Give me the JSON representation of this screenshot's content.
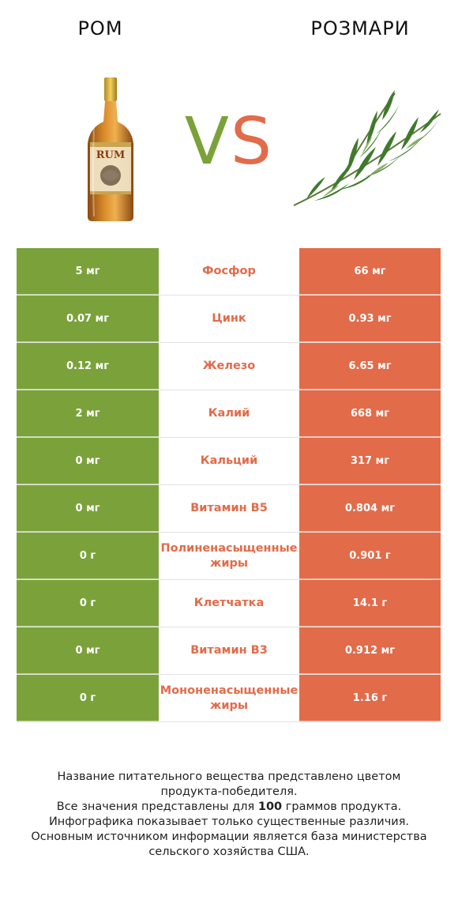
{
  "left_product": {
    "name": "РОМ",
    "image": "rum-bottle-image"
  },
  "right_product": {
    "name": "РОЗМАРИ",
    "image": "rosemary-sprig-image"
  },
  "vs": {
    "v": "V",
    "s": "S"
  },
  "colors": {
    "left": "#7ba23a",
    "right": "#e26b4a"
  },
  "rows": [
    {
      "left": "5 мг",
      "nutrient": "Фосфор",
      "right": "66 мг",
      "winner": "right"
    },
    {
      "left": "0.07 мг",
      "nutrient": "Цинк",
      "right": "0.93 мг",
      "winner": "right"
    },
    {
      "left": "0.12 мг",
      "nutrient": "Железо",
      "right": "6.65 мг",
      "winner": "right"
    },
    {
      "left": "2 мг",
      "nutrient": "Калий",
      "right": "668 мг",
      "winner": "right"
    },
    {
      "left": "0 мг",
      "nutrient": "Кальций",
      "right": "317 мг",
      "winner": "right"
    },
    {
      "left": "0 мг",
      "nutrient": "Витамин B5",
      "right": "0.804 мг",
      "winner": "right"
    },
    {
      "left": "0 г",
      "nutrient": "Полиненасыщенные жиры",
      "right": "0.901 г",
      "winner": "right"
    },
    {
      "left": "0 г",
      "nutrient": "Клетчатка",
      "right": "14.1 г",
      "winner": "right"
    },
    {
      "left": "0 мг",
      "nutrient": "Витамин B3",
      "right": "0.912 мг",
      "winner": "right"
    },
    {
      "left": "0 г",
      "nutrient": "Мононенасыщенные жиры",
      "right": "1.16 г",
      "winner": "right"
    }
  ],
  "footer": {
    "line1": "Название питательного вещества представлено цветом",
    "line2": "продукта-победителя.",
    "line3_pre": "Все значения представлены для ",
    "line3_bold": "100",
    "line3_post": " граммов продукта.",
    "line4": "Инфографика показывает только существенные различия.",
    "line5": "Основным источником информации является база министерства",
    "line6": "сельского хозяйства США."
  }
}
